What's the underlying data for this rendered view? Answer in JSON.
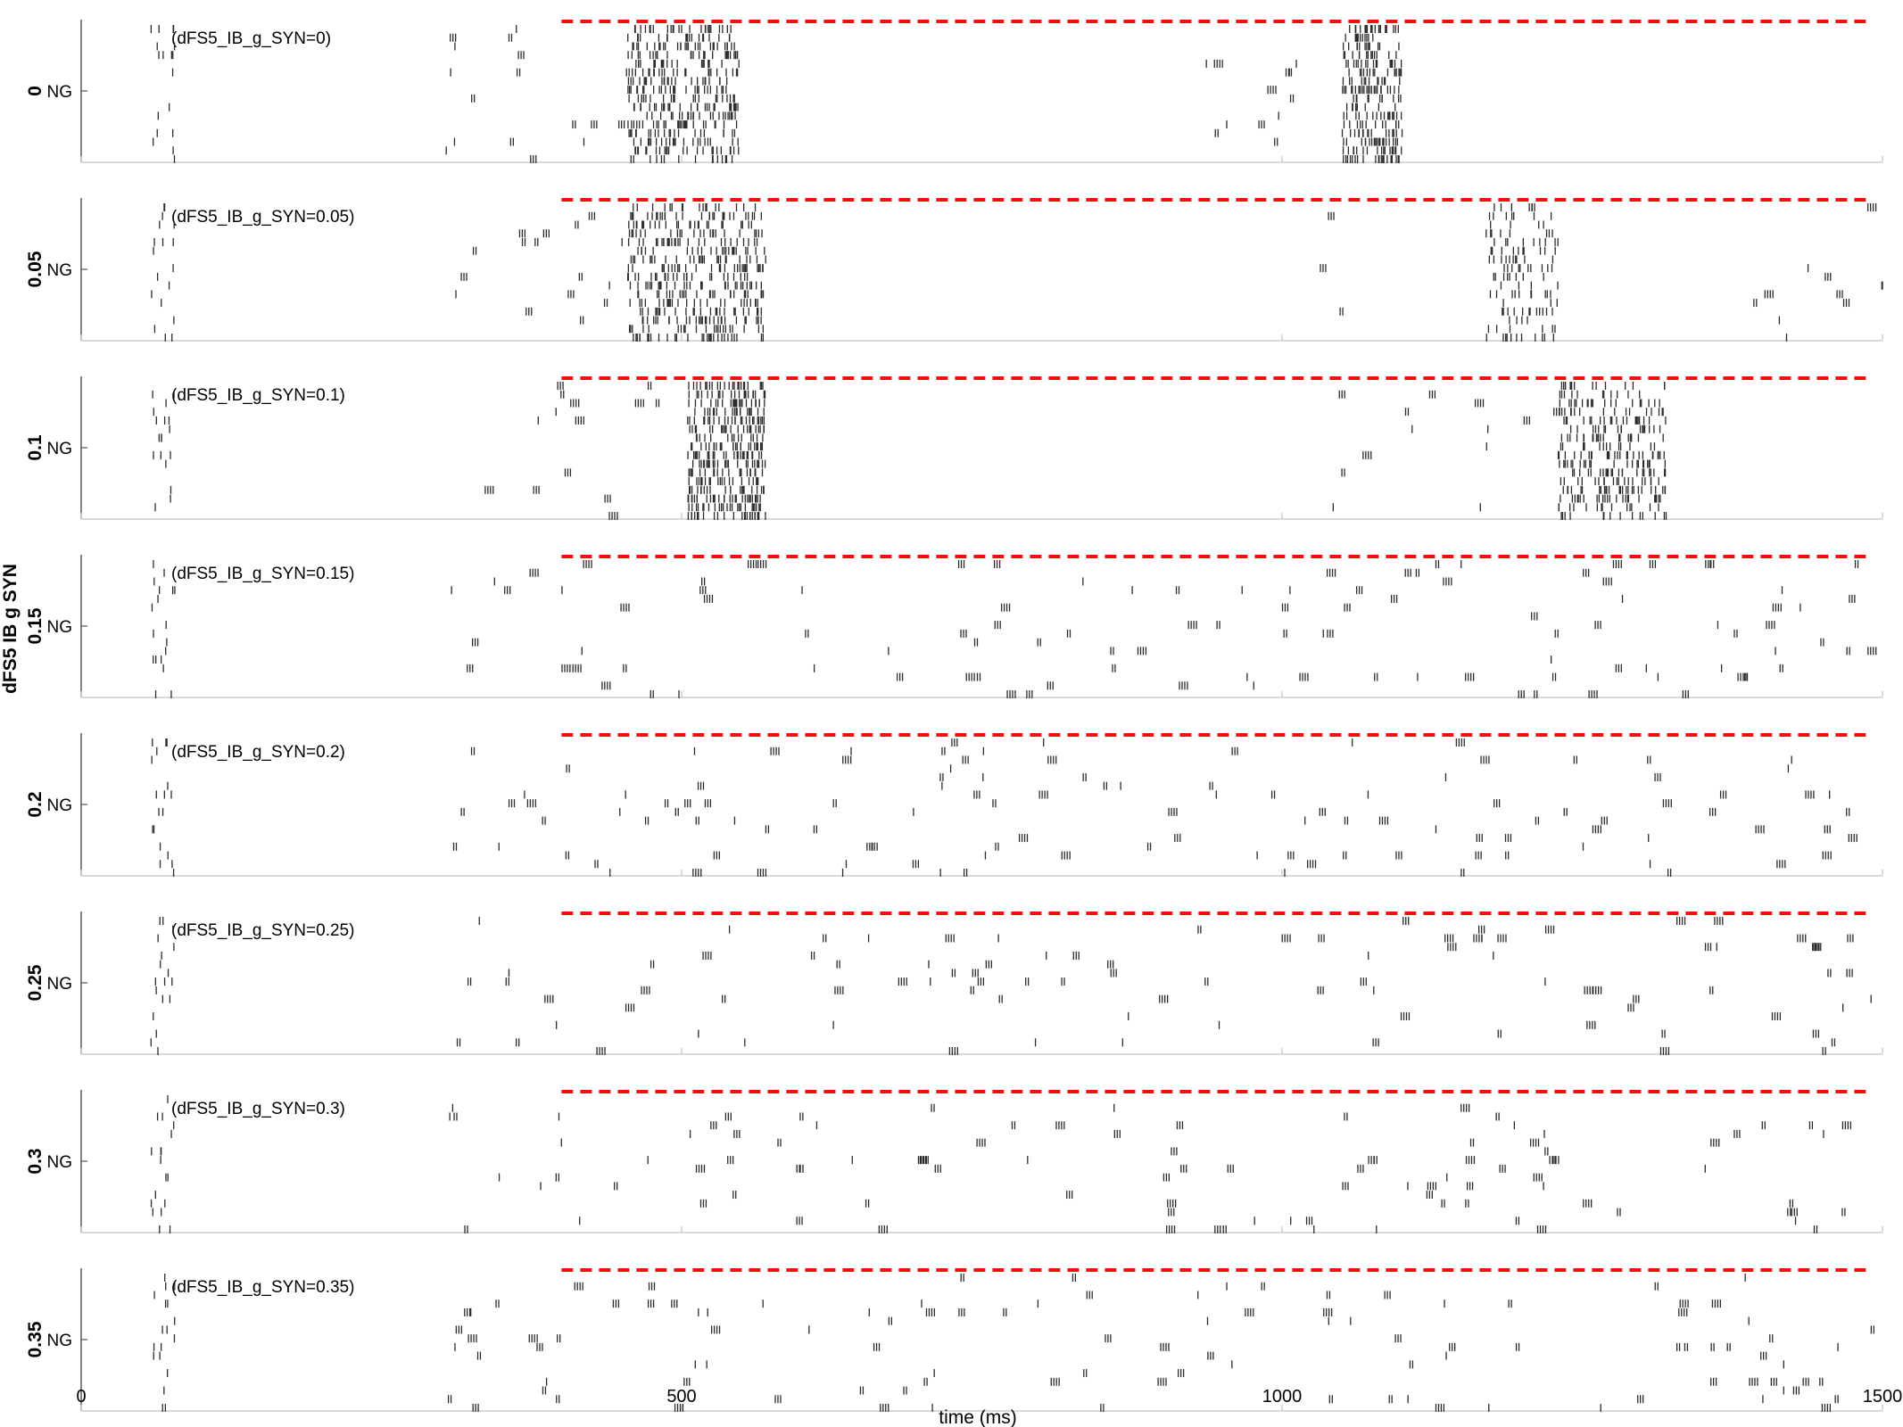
{
  "chart_data": {
    "type": "raster",
    "ylabel": "dFS5 IB g SYN",
    "xlabel": "time (ms)",
    "xlim": [
      0,
      1500
    ],
    "xticks": [
      {
        "value": 0,
        "label": "0"
      },
      {
        "value": 500,
        "label": "500"
      },
      {
        "value": 1000,
        "label": "1000"
      },
      {
        "value": 1500,
        "label": "1500"
      }
    ],
    "ytick_label": "NG",
    "grid": false,
    "spike_color": "#2b2b2b",
    "marker_color": "#ee1111",
    "marker_line": {
      "x_start": 400,
      "x_end": 1490,
      "style": "dashed"
    },
    "panels": [
      {
        "value": "0",
        "annotation": "(dFS5_IB_g_SYN=0)",
        "bursts": [
          {
            "t0": 455,
            "t1": 548,
            "n": 380
          },
          {
            "t0": 1050,
            "t1": 1100,
            "n": 260
          }
        ],
        "scattered": [
          {
            "t0": 300,
            "t1": 470,
            "n": 35
          },
          {
            "t0": 930,
            "t1": 1030,
            "n": 25
          }
        ]
      },
      {
        "value": "0.05",
        "annotation": "(dFS5_IB_g_SYN=0.05)",
        "bursts": [
          {
            "t0": 455,
            "t1": 570,
            "n": 420
          },
          {
            "t0": 1170,
            "t1": 1230,
            "n": 120
          }
        ],
        "scattered": [
          {
            "t0": 300,
            "t1": 460,
            "n": 35
          },
          {
            "t0": 1000,
            "t1": 1500,
            "n": 35
          }
        ]
      },
      {
        "value": "0.1",
        "annotation": "(dFS5_IB_g_SYN=0.1)",
        "bursts": [
          {
            "t0": 505,
            "t1": 570,
            "n": 380
          },
          {
            "t0": 1230,
            "t1": 1320,
            "n": 300
          }
        ],
        "scattered": [
          {
            "t0": 300,
            "t1": 520,
            "n": 40
          },
          {
            "t0": 1020,
            "t1": 1250,
            "n": 35
          }
        ]
      },
      {
        "value": "0.15",
        "annotation": "(dFS5_IB_g_SYN=0.15)",
        "bursts": [],
        "scattered": [
          {
            "t0": 300,
            "t1": 1500,
            "n": 260
          }
        ]
      },
      {
        "value": "0.2",
        "annotation": "(dFS5_IB_g_SYN=0.2)",
        "bursts": [],
        "scattered": [
          {
            "t0": 300,
            "t1": 1500,
            "n": 260
          }
        ]
      },
      {
        "value": "0.25",
        "annotation": "(dFS5_IB_g_SYN=0.25)",
        "bursts": [],
        "scattered": [
          {
            "t0": 300,
            "t1": 1500,
            "n": 230
          }
        ]
      },
      {
        "value": "0.3",
        "annotation": "(dFS5_IB_g_SYN=0.3)",
        "bursts": [],
        "scattered": [
          {
            "t0": 300,
            "t1": 1500,
            "n": 230
          }
        ]
      },
      {
        "value": "0.35",
        "annotation": "(dFS5_IB_g_SYN=0.35)",
        "bursts": [],
        "scattered": [
          {
            "t0": 300,
            "t1": 1500,
            "n": 240
          }
        ]
      }
    ],
    "onset_spikes": {
      "t0": 58,
      "t1": 78,
      "n": 18
    }
  }
}
